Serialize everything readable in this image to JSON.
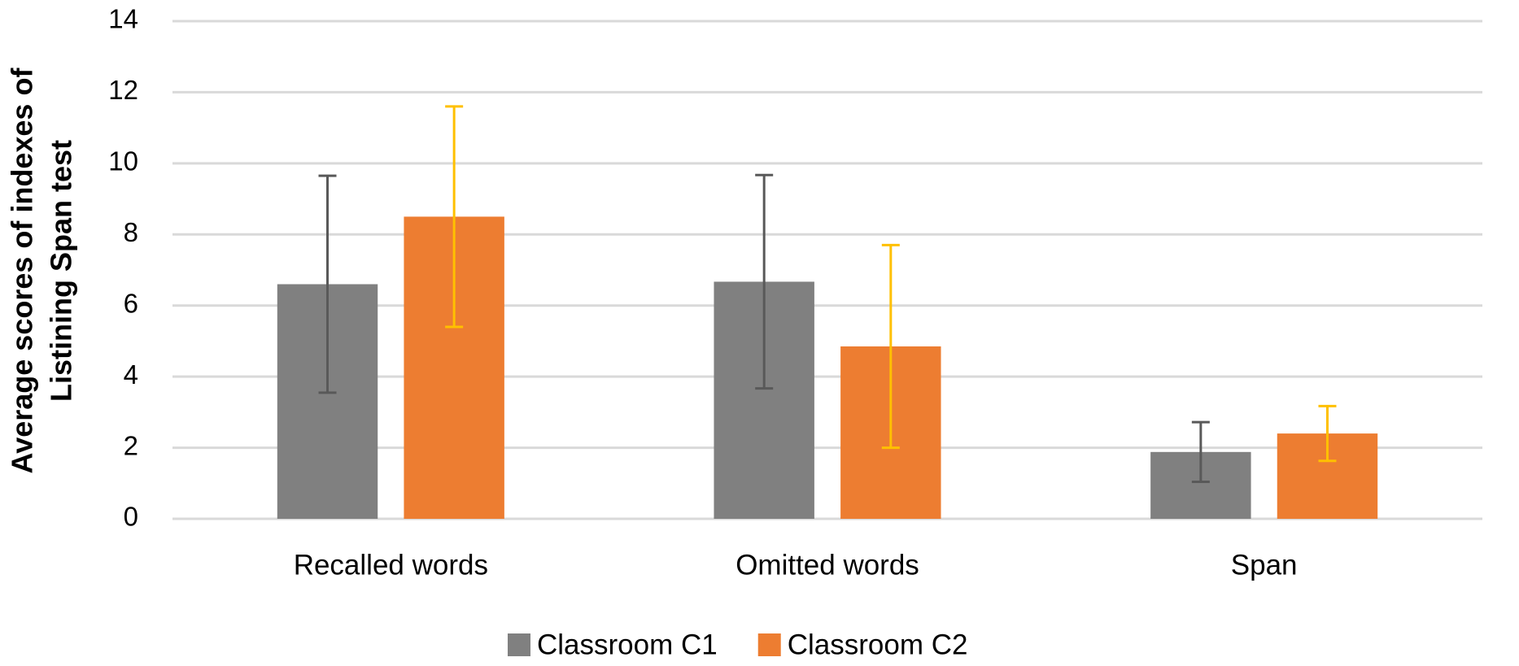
{
  "chart_data": {
    "type": "bar",
    "ylabel": [
      "Average scores of indexes of",
      "Listining Span test"
    ],
    "categories": [
      "Recalled words",
      "Omitted words",
      "Span"
    ],
    "series": [
      {
        "name": "Classroom C1",
        "color": "#808080",
        "error_color": "#595959",
        "values": [
          6.6,
          6.67,
          1.88
        ],
        "errors": [
          3.05,
          3.0,
          0.84
        ]
      },
      {
        "name": "Classroom C2",
        "color": "#ed7d31",
        "error_color": "#ffc000",
        "values": [
          8.5,
          4.85,
          2.4
        ],
        "errors": [
          3.1,
          2.85,
          0.77
        ]
      }
    ],
    "ylim": [
      0,
      14
    ],
    "yticks": [
      0,
      2,
      4,
      6,
      8,
      10,
      12,
      14
    ],
    "grid": true,
    "legend": "bottom"
  }
}
